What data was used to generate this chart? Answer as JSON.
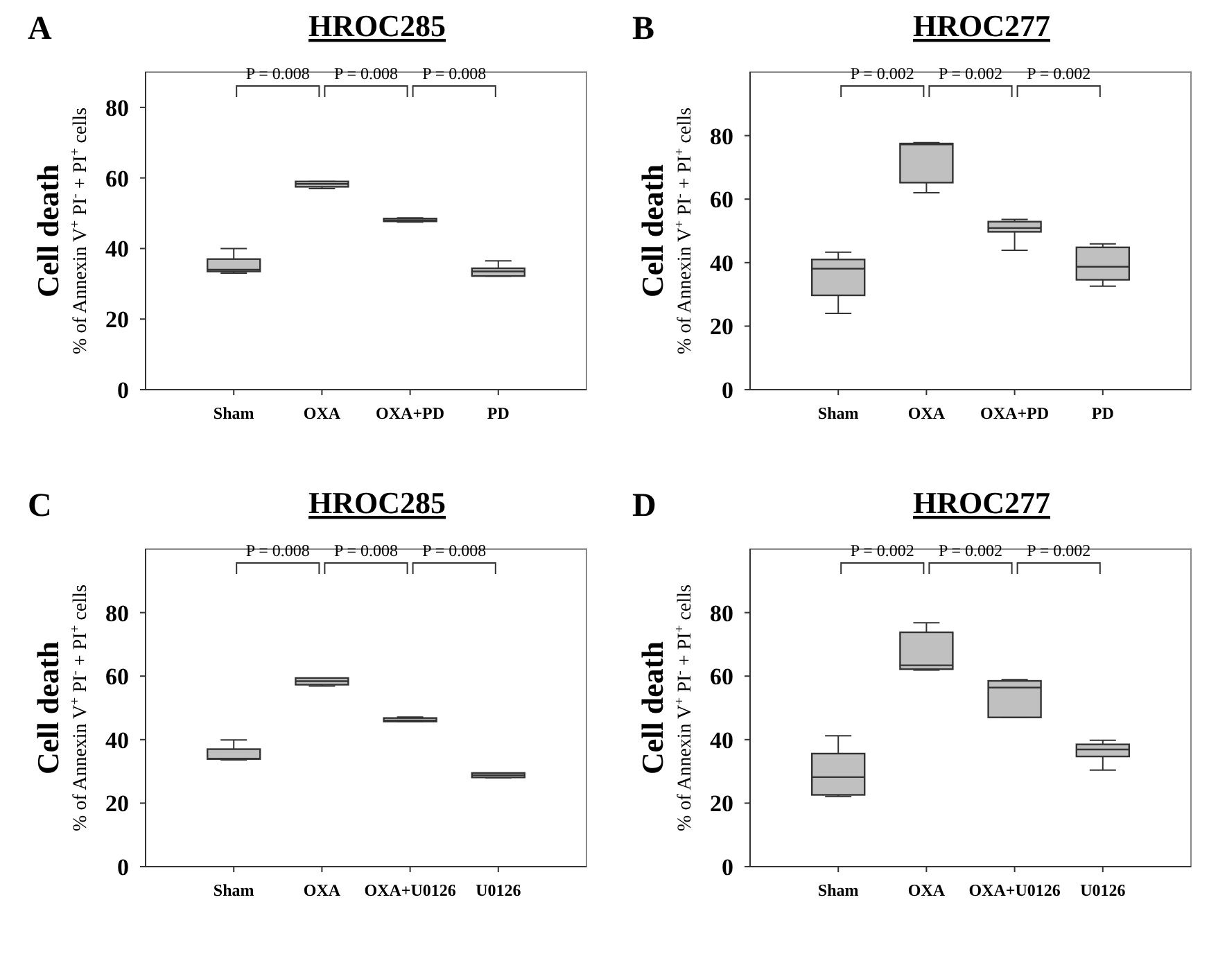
{
  "chart_data": [
    {
      "type": "box",
      "title": "HROC285",
      "ylabel": "Cell death\n% of Annexin V$^{+}$ PI$^{-}$ + PI$^{+}$ cells",
      "categories": [
        "Sham",
        "OXA",
        "OXA+PD",
        "PD"
      ],
      "color": "#c0c0c0",
      "ylim": [
        0,
        90
      ],
      "yticks": [
        0,
        20,
        40,
        60,
        80
      ],
      "grid": false,
      "annotations": [
        "A",
        "P = 0.008",
        "P = 0.008",
        "P = 0.008"
      ],
      "boxes": [
        {
          "low": 33,
          "q1": 33.5,
          "median": 34,
          "q3": 37,
          "high": 40
        },
        {
          "low": 57,
          "q1": 57.5,
          "median": 58.3,
          "q3": 59,
          "high": 59
        },
        {
          "low": 47.5,
          "q1": 47.7,
          "median": 48,
          "q3": 48.5,
          "high": 48.7
        },
        {
          "low": 32.2,
          "q1": 32.2,
          "median": 33.5,
          "q3": 34.4,
          "high": 36.5
        }
      ]
    },
    {
      "type": "box",
      "title": "HROC277",
      "ylabel": "Cell death\n% of Annexin V$^{+}$ PI$^{-}$ + PI$^{+}$ cells",
      "categories": [
        "Sham",
        "OXA",
        "OXA+PD",
        "PD"
      ],
      "color": "#c0c0c0",
      "ylim": [
        0,
        100
      ],
      "yticks": [
        0,
        20,
        40,
        60,
        80
      ],
      "grid": false,
      "annotations": [
        "B",
        "P = 0.002",
        "P = 0.002",
        "P = 0.002"
      ],
      "boxes": [
        {
          "low": 24,
          "q1": 29.7,
          "median": 38.1,
          "q3": 41,
          "high": 43.3
        },
        {
          "low": 62,
          "q1": 65.2,
          "median": 77.2,
          "q3": 77.5,
          "high": 77.8
        },
        {
          "low": 43.9,
          "q1": 49.7,
          "median": 50.9,
          "q3": 52.9,
          "high": 53.6
        },
        {
          "low": 32.6,
          "q1": 34.6,
          "median": 38.7,
          "q3": 44.8,
          "high": 45.9
        }
      ]
    },
    {
      "type": "box",
      "title": "HROC285",
      "ylabel": "Cell death\n% of Annexin V$^{+}$ PI$^{-}$ + PI$^{+}$ cells",
      "categories": [
        "Sham",
        "OXA",
        "OXA+U0126",
        "U0126"
      ],
      "color": "#c0c0c0",
      "ylim": [
        0,
        100
      ],
      "yticks": [
        0,
        20,
        40,
        60,
        80
      ],
      "grid": false,
      "annotations": [
        "C",
        "P = 0.008",
        "P = 0.008",
        "P = 0.008"
      ],
      "boxes": [
        {
          "low": 33.6,
          "q1": 33.9,
          "median": 34,
          "q3": 37,
          "high": 39.9
        },
        {
          "low": 56.9,
          "q1": 57.3,
          "median": 58.4,
          "q3": 59.4,
          "high": 59.4
        },
        {
          "low": 45.7,
          "q1": 45.7,
          "median": 46,
          "q3": 46.8,
          "high": 47.1
        },
        {
          "low": 28,
          "q1": 28.1,
          "median": 28.8,
          "q3": 29.5,
          "high": 29.5
        }
      ]
    },
    {
      "type": "box",
      "title": "HROC277",
      "ylabel": "Cell death\n% of Annexin V$^{+}$ PI$^{-}$ + PI$^{+}$ cells",
      "categories": [
        "Sham",
        "OXA",
        "OXA+U0126",
        "U0126"
      ],
      "color": "#c0c0c0",
      "ylim": [
        0,
        100
      ],
      "yticks": [
        0,
        20,
        40,
        60,
        80
      ],
      "grid": false,
      "annotations": [
        "D",
        "P = 0.002",
        "P = 0.002",
        "P = 0.002"
      ],
      "boxes": [
        {
          "low": 22.1,
          "q1": 22.6,
          "median": 28.2,
          "q3": 35.6,
          "high": 41.2
        },
        {
          "low": 61.9,
          "q1": 62.2,
          "median": 63.4,
          "q3": 73.8,
          "high": 76.8
        },
        {
          "low": 47,
          "q1": 47,
          "median": 56.4,
          "q3": 58.5,
          "high": 58.9
        },
        {
          "low": 30.4,
          "q1": 34.7,
          "median": 36.9,
          "q3": 38.5,
          "high": 39.8
        }
      ]
    }
  ]
}
